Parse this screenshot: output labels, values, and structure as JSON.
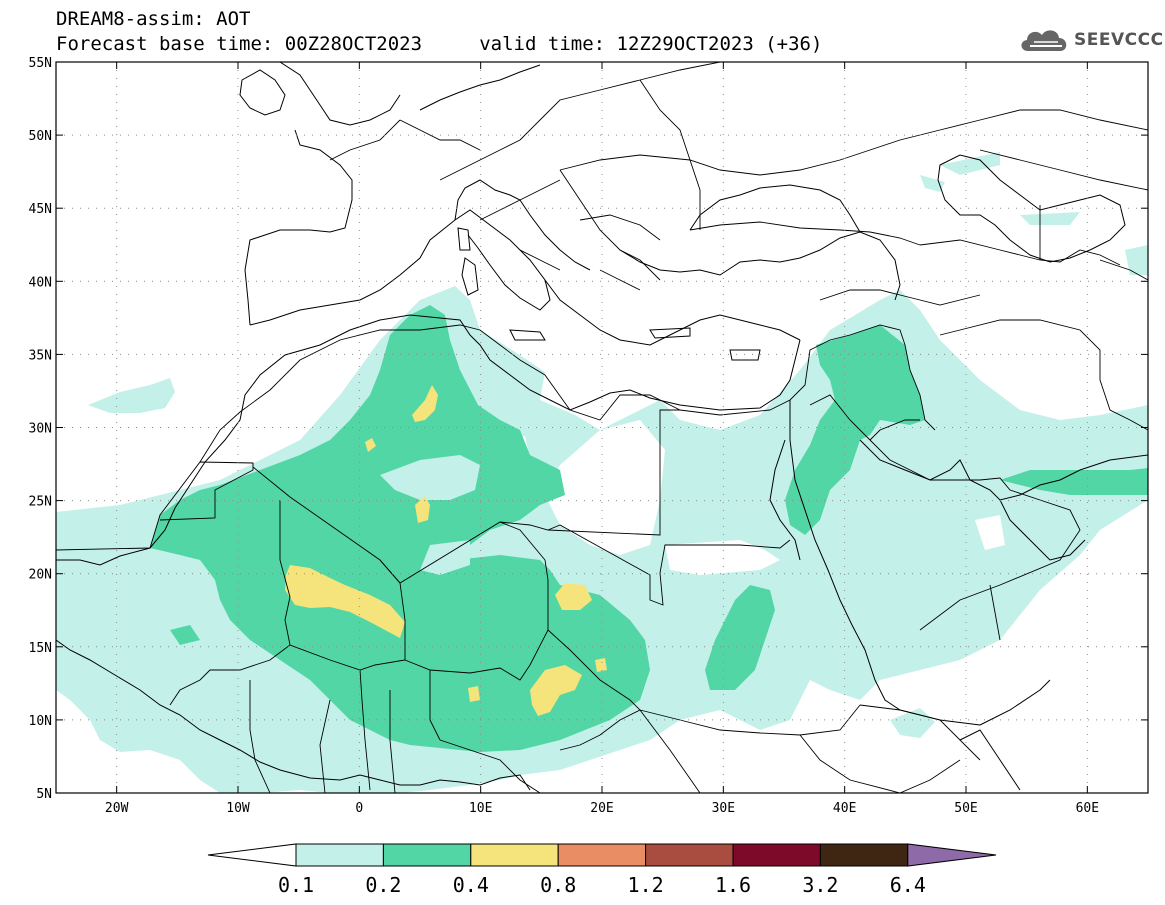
{
  "header": {
    "title": "DREAM8-assim: AOT",
    "subtitle": "Forecast base time: 00Z28OCT2023     valid time: 12Z29OCT2023 (+36)"
  },
  "logo": {
    "text": "SEEVCCC",
    "icon": "cloud-icon"
  },
  "map": {
    "lon_range": [
      -25,
      65
    ],
    "lat_range": [
      5,
      55
    ],
    "lat_ticks": [
      {
        "value": 55,
        "label": "55N"
      },
      {
        "value": 50,
        "label": "50N"
      },
      {
        "value": 45,
        "label": "45N"
      },
      {
        "value": 40,
        "label": "40N"
      },
      {
        "value": 35,
        "label": "35N"
      },
      {
        "value": 30,
        "label": "30N"
      },
      {
        "value": 25,
        "label": "25N"
      },
      {
        "value": 20,
        "label": "20N"
      },
      {
        "value": 15,
        "label": "15N"
      },
      {
        "value": 10,
        "label": "10N"
      },
      {
        "value": 5,
        "label": "5N"
      }
    ],
    "lon_ticks": [
      {
        "value": -20,
        "label": "20W"
      },
      {
        "value": -10,
        "label": "10W"
      },
      {
        "value": 0,
        "label": "0"
      },
      {
        "value": 10,
        "label": "10E"
      },
      {
        "value": 20,
        "label": "20E"
      },
      {
        "value": 30,
        "label": "30E"
      },
      {
        "value": 40,
        "label": "40E"
      },
      {
        "value": 50,
        "label": "50E"
      },
      {
        "value": 60,
        "label": "60E"
      }
    ],
    "grid": true
  },
  "colorbar": {
    "labels": [
      "0.1",
      "0.2",
      "0.4",
      "0.8",
      "1.2",
      "1.6",
      "3.2",
      "6.4"
    ],
    "colors": [
      "#c4f0ea",
      "#52d6a6",
      "#f4e47b",
      "#e98d64",
      "#aa4d41",
      "#7d0a29",
      "#3e2613",
      "#8f6aa9"
    ]
  },
  "levels": {
    "level_1": "#c4f0ea",
    "level_2": "#52d6a6",
    "level_3": "#f4e47b"
  }
}
